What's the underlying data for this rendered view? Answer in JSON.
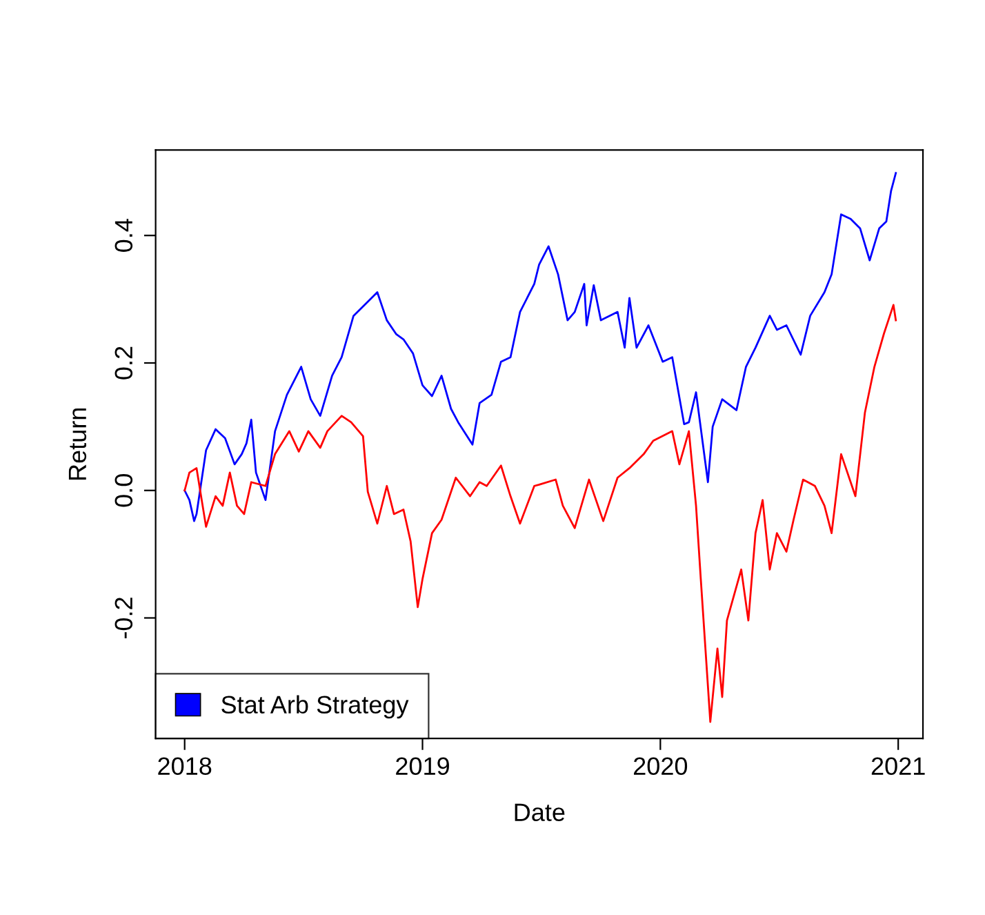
{
  "chart_data": {
    "type": "line",
    "xlabel": "Date",
    "ylabel": "Return",
    "xlim": [
      2017.878,
      2021.104
    ],
    "xticks": [
      2018,
      2019,
      2020,
      2021
    ],
    "ylim": [
      -0.389,
      0.534
    ],
    "yticks": [
      {
        "value": -0.2,
        "label": "-0.2"
      },
      {
        "value": 0,
        "label": "0.0"
      },
      {
        "value": 0.2,
        "label": "0.2"
      },
      {
        "value": 0.4,
        "label": "0.4"
      }
    ],
    "grid": false,
    "legend": "bottom left",
    "marker": "none",
    "line_style": "solid",
    "series": [
      {
        "name": "Stat Arb Strategy",
        "color": "#0000ff",
        "x": [
          2018.0,
          2018.02,
          2018.04,
          2018.05,
          2018.09,
          2018.13,
          2018.17,
          2018.21,
          2018.24,
          2018.26,
          2018.28,
          2018.3,
          2018.34,
          2018.38,
          2018.43,
          2018.46,
          2018.49,
          2018.53,
          2018.57,
          2018.62,
          2018.66,
          2018.71,
          2018.77,
          2018.81,
          2018.85,
          2018.89,
          2018.92,
          2018.96,
          2019.0,
          2019.04,
          2019.08,
          2019.12,
          2019.15,
          2019.21,
          2019.24,
          2019.29,
          2019.33,
          2019.37,
          2019.41,
          2019.47,
          2019.49,
          2019.53,
          2019.57,
          2019.61,
          2019.64,
          2019.68,
          2019.69,
          2019.72,
          2019.75,
          2019.82,
          2019.85,
          2019.87,
          2019.9,
          2019.95,
          2020.01,
          2020.05,
          2020.1,
          2020.12,
          2020.15,
          2020.2,
          2020.22,
          2020.26,
          2020.32,
          2020.36,
          2020.4,
          2020.46,
          2020.49,
          2020.53,
          2020.59,
          2020.63,
          2020.69,
          2020.72,
          2020.76,
          2020.8,
          2020.84,
          2020.88,
          2020.92,
          2020.95,
          2020.97,
          2020.99
        ],
        "values": [
          0.0,
          -0.015,
          -0.048,
          -0.037,
          0.063,
          0.096,
          0.082,
          0.041,
          0.057,
          0.074,
          0.111,
          0.028,
          -0.015,
          0.093,
          0.15,
          0.172,
          0.194,
          0.143,
          0.117,
          0.18,
          0.209,
          0.274,
          0.296,
          0.311,
          0.267,
          0.245,
          0.237,
          0.215,
          0.165,
          0.148,
          0.18,
          0.128,
          0.107,
          0.072,
          0.137,
          0.15,
          0.202,
          0.209,
          0.28,
          0.324,
          0.354,
          0.383,
          0.339,
          0.267,
          0.28,
          0.324,
          0.259,
          0.322,
          0.267,
          0.28,
          0.224,
          0.302,
          0.224,
          0.259,
          0.202,
          0.209,
          0.104,
          0.107,
          0.154,
          0.013,
          0.1,
          0.143,
          0.126,
          0.194,
          0.224,
          0.274,
          0.252,
          0.259,
          0.213,
          0.274,
          0.311,
          0.339,
          0.433,
          0.426,
          0.411,
          0.361,
          0.411,
          0.422,
          0.47,
          0.498
        ]
      },
      {
        "color": "#ff0000",
        "x": [
          2018.0,
          2018.02,
          2018.05,
          2018.09,
          2018.13,
          2018.16,
          2018.19,
          2018.22,
          2018.25,
          2018.28,
          2018.34,
          2018.38,
          2018.44,
          2018.48,
          2018.52,
          2018.57,
          2018.6,
          2018.66,
          2018.7,
          2018.75,
          2018.77,
          2018.81,
          2018.85,
          2018.88,
          2018.92,
          2018.95,
          2018.98,
          2019.0,
          2019.04,
          2019.08,
          2019.14,
          2019.2,
          2019.24,
          2019.27,
          2019.33,
          2019.37,
          2019.41,
          2019.47,
          2019.49,
          2019.56,
          2019.59,
          2019.64,
          2019.7,
          2019.76,
          2019.82,
          2019.87,
          2019.93,
          2019.97,
          2020.05,
          2020.08,
          2020.12,
          2020.15,
          2020.17,
          2020.21,
          2020.24,
          2020.26,
          2020.28,
          2020.34,
          2020.37,
          2020.4,
          2020.43,
          2020.46,
          2020.49,
          2020.53,
          2020.56,
          2020.6,
          2020.65,
          2020.69,
          2020.72,
          2020.76,
          2020.82,
          2020.86,
          2020.9,
          2020.94,
          2020.98,
          2020.99
        ],
        "values": [
          0.0,
          0.028,
          0.035,
          -0.057,
          -0.009,
          -0.024,
          0.028,
          -0.024,
          -0.037,
          0.013,
          0.007,
          0.057,
          0.093,
          0.061,
          0.093,
          0.067,
          0.093,
          0.117,
          0.107,
          0.085,
          -0.002,
          -0.052,
          0.007,
          -0.037,
          -0.03,
          -0.08,
          -0.183,
          -0.139,
          -0.067,
          -0.046,
          0.02,
          -0.009,
          0.013,
          0.007,
          0.039,
          -0.009,
          -0.052,
          0.007,
          0.009,
          0.017,
          -0.024,
          -0.059,
          0.017,
          -0.048,
          0.02,
          0.035,
          0.057,
          0.078,
          0.093,
          0.041,
          0.093,
          -0.024,
          -0.139,
          -0.363,
          -0.248,
          -0.324,
          -0.204,
          -0.124,
          -0.204,
          -0.067,
          -0.015,
          -0.124,
          -0.067,
          -0.096,
          -0.046,
          0.017,
          0.007,
          -0.024,
          -0.067,
          0.057,
          -0.009,
          0.122,
          0.194,
          0.246,
          0.291,
          0.267
        ]
      }
    ]
  }
}
